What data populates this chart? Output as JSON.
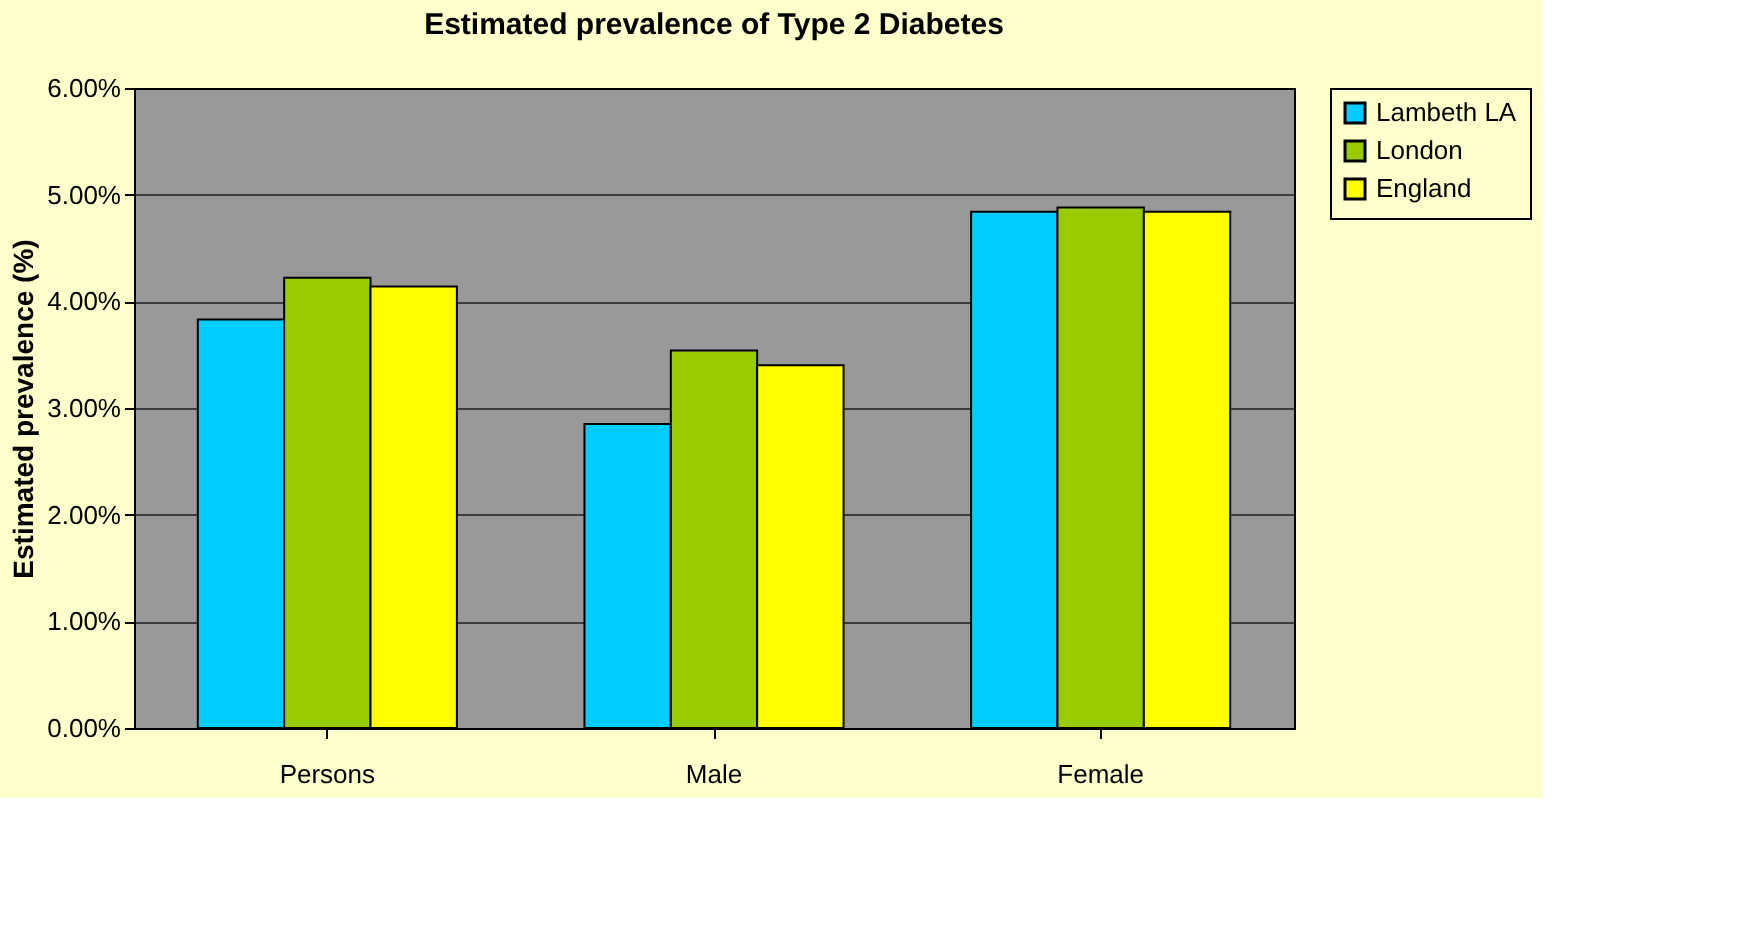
{
  "chart_data": {
    "type": "bar",
    "title": "Estimated prevalence of Type 2 Diabetes",
    "ylabel": "Estimated prevalence (%)",
    "categories": [
      "Persons",
      "Male",
      "Female"
    ],
    "series": [
      {
        "name": "Lambeth LA",
        "color": "#00ccff",
        "values": [
          3.83,
          2.85,
          4.84
        ]
      },
      {
        "name": "London",
        "color": "#99cc00",
        "values": [
          4.22,
          3.54,
          4.88
        ]
      },
      {
        "name": "England",
        "color": "#ffff00",
        "values": [
          4.14,
          3.4,
          4.84
        ]
      }
    ],
    "ylim": [
      0,
      6
    ],
    "yticks": [
      {
        "value": 0,
        "label": "0.00%"
      },
      {
        "value": 1,
        "label": "1.00%"
      },
      {
        "value": 2,
        "label": "2.00%"
      },
      {
        "value": 3,
        "label": "3.00%"
      },
      {
        "value": 4,
        "label": "4.00%"
      },
      {
        "value": 5,
        "label": "5.00%"
      },
      {
        "value": 6,
        "label": "6.00%"
      }
    ],
    "grid": "y",
    "legend": "right"
  }
}
